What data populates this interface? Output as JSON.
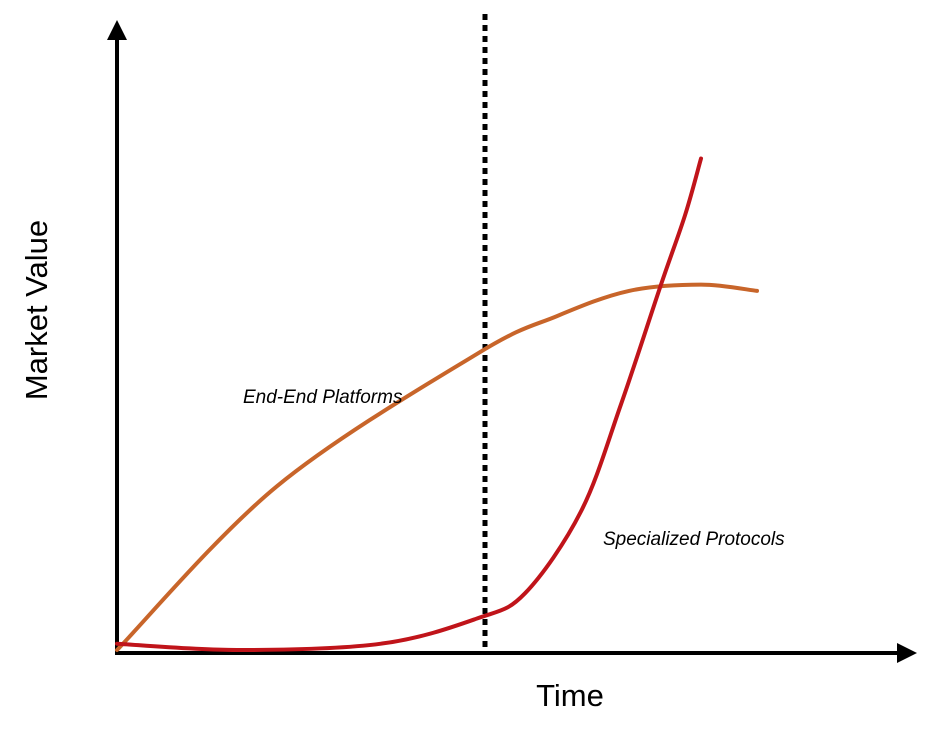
{
  "chart_data": {
    "type": "line",
    "xlabel": "Time",
    "ylabel": "Market Value",
    "grid": false,
    "legend": "none",
    "axis_ticks": false,
    "xlim": [
      0,
      100
    ],
    "ylim": [
      0,
      100
    ],
    "series": [
      {
        "name": "End-End Platforms",
        "color": "#c8652a",
        "points": [
          [
            0,
            0
          ],
          [
            20,
            26
          ],
          [
            45,
            47
          ],
          [
            55,
            53
          ],
          [
            64,
            57
          ],
          [
            73,
            58
          ],
          [
            80,
            57
          ]
        ]
      },
      {
        "name": "Specialized Protocols",
        "color": "#c0141a",
        "points": [
          [
            0,
            1
          ],
          [
            15,
            0
          ],
          [
            33,
            1
          ],
          [
            45,
            5
          ],
          [
            51,
            9
          ],
          [
            58,
            22
          ],
          [
            63,
            39
          ],
          [
            68,
            58
          ],
          [
            71,
            69
          ],
          [
            73,
            78
          ]
        ]
      }
    ],
    "annotations": [
      {
        "type": "vertical-dotted-line",
        "x": 46
      }
    ]
  }
}
